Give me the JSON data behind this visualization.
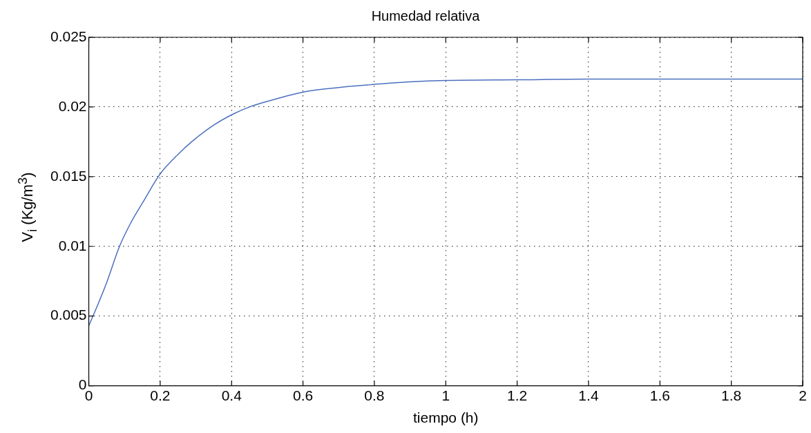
{
  "chart_data": {
    "type": "line",
    "title": "Humedad relativa",
    "xlabel": "tiempo (h)",
    "ylabel": "V$_{i}$ (Kg/m$^{3}$)",
    "x": [
      0,
      0.025,
      0.05,
      0.086,
      0.12,
      0.15,
      0.2,
      0.25,
      0.288,
      0.35,
      0.405,
      0.45,
      0.5,
      0.606,
      0.7,
      0.79,
      0.9,
      1.0,
      1.2,
      1.4,
      2
    ],
    "series": [
      {
        "color": "#4a6fbf",
        "values": [
          0.0043,
          0.0058,
          0.0074,
          0.01,
          0.0118,
          0.0131,
          0.0152,
          0.0166,
          0.0175,
          0.0187,
          0.0195,
          0.02,
          0.0204,
          0.0211,
          0.0214,
          0.0216,
          0.0218,
          0.0219,
          0.02195,
          0.022,
          0.022
        ]
      }
    ],
    "xlim": [
      0,
      2
    ],
    "xticks": [
      0,
      0.2,
      0.4,
      0.6,
      0.8,
      1,
      1.2,
      1.4,
      1.6,
      1.8,
      2
    ],
    "ylim": [
      0,
      0.025
    ],
    "yticks": [
      0,
      0.005,
      0.01,
      0.015,
      0.02,
      0.025
    ],
    "grid": true,
    "legend": false,
    "marker": "none",
    "line_style": "solid"
  }
}
